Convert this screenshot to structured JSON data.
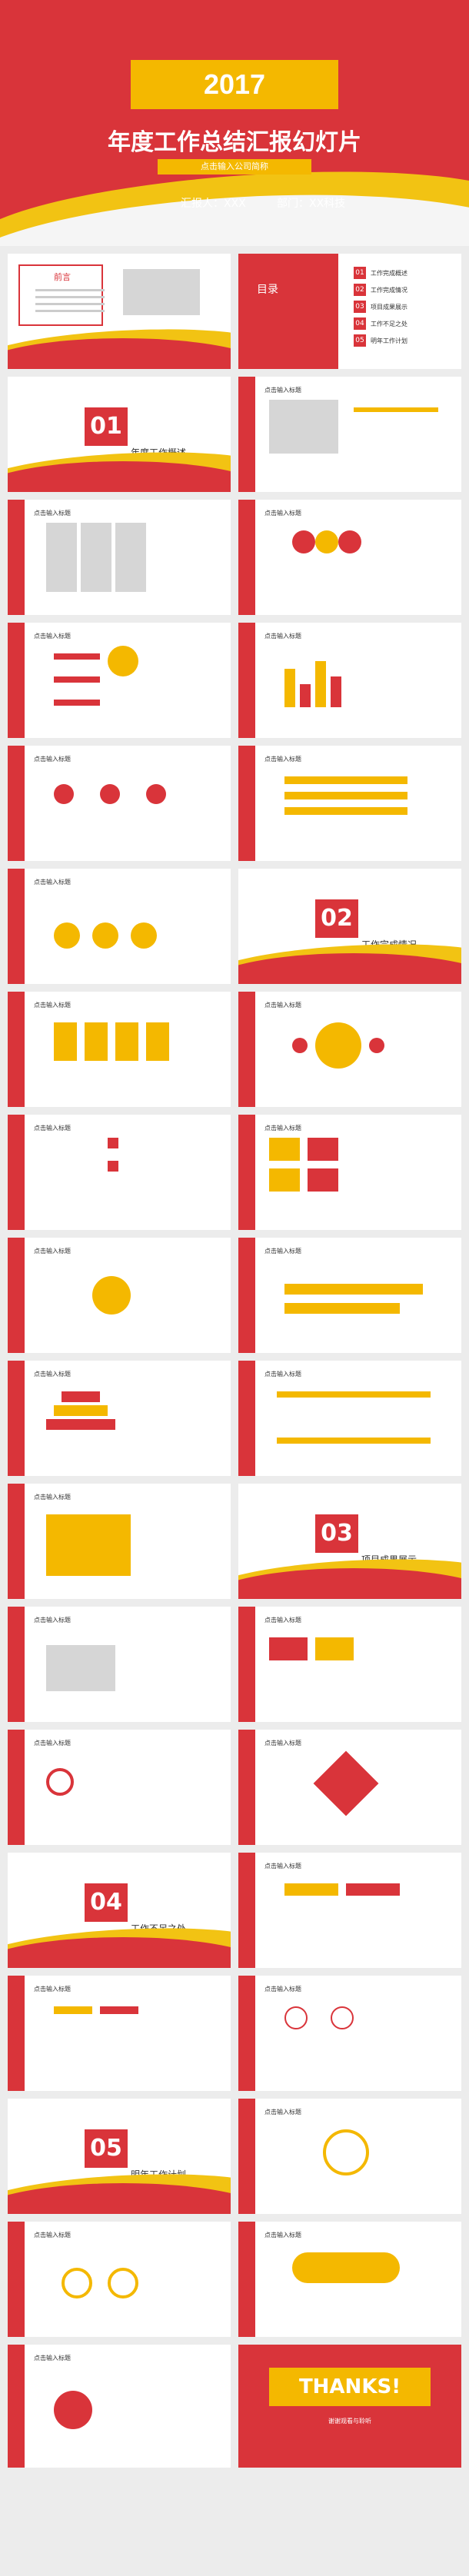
{
  "cover": {
    "year": "2017",
    "title": "年度工作总结汇报幻灯片",
    "subtitle": "点击输入公司简称",
    "reporter": "汇报人：XXX",
    "department": "部门：XX科技"
  },
  "slides": {
    "preface_label": "前言",
    "toc_title": "目录",
    "toc_items": [
      "工作完成概述",
      "工作完成情况",
      "项目成果展示",
      "工作不足之处",
      "明年工作计划"
    ],
    "toc_nums": [
      "01",
      "02",
      "03",
      "04",
      "05"
    ],
    "section1_num": "01",
    "section1_title": "年度工作概述",
    "section2_num": "02",
    "section2_title": "工作完成情况",
    "section3_num": "03",
    "section3_title": "项目成果展示",
    "section4_num": "04",
    "section4_title": "工作不足之处",
    "section5_num": "05",
    "section5_title": "明年工作计划",
    "heading": "点击输入标题",
    "thanks": "THANKS!",
    "thanks_sub": "谢谢观看与聆听"
  },
  "colors": {
    "red": "#d9343a",
    "yellow": "#f4b800",
    "white": "#ffffff"
  }
}
